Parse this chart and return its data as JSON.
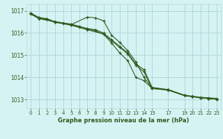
{
  "background_color": "#d5f3f3",
  "grid_color": "#b0d8d8",
  "line_color": "#2d5a1b",
  "title": "Graphe pression niveau de la mer (hPa)",
  "xlim": [
    -0.5,
    23.5
  ],
  "ylim": [
    1012.6,
    1017.3
  ],
  "yticks": [
    1013,
    1014,
    1015,
    1016,
    1017
  ],
  "xtick_positions": [
    0,
    1,
    2,
    3,
    4,
    5,
    6,
    7,
    8,
    9,
    10,
    11,
    12,
    13,
    14,
    15,
    17,
    19,
    20,
    21,
    22,
    23
  ],
  "xtick_labels": [
    "0",
    "1",
    "2",
    "3",
    "4",
    "5",
    "6",
    "7",
    "8",
    "9",
    "10",
    "11",
    "12",
    "13",
    "14",
    "15",
    "17",
    "19",
    "20",
    "21",
    "22",
    "23"
  ],
  "series": [
    {
      "x": [
        0,
        1,
        2,
        3,
        4,
        5,
        6,
        7,
        8,
        9,
        10,
        11,
        12,
        13,
        14,
        15,
        17,
        19,
        20,
        21,
        22,
        23
      ],
      "y": [
        1016.9,
        1016.7,
        1016.65,
        1016.5,
        1016.45,
        1016.4,
        1016.3,
        1016.2,
        1016.15,
        1016.0,
        1015.7,
        1015.4,
        1015.1,
        1014.6,
        1014.35,
        1013.55,
        1013.45,
        1013.2,
        1013.15,
        1013.1,
        1013.08,
        1013.05
      ]
    },
    {
      "x": [
        0,
        1,
        2,
        3,
        4,
        5,
        6,
        7,
        8,
        9,
        10,
        11,
        12,
        13,
        14,
        15,
        17,
        19,
        20,
        21,
        22,
        23
      ],
      "y": [
        1016.85,
        1016.65,
        1016.6,
        1016.48,
        1016.42,
        1016.37,
        1016.27,
        1016.17,
        1016.1,
        1015.95,
        1015.65,
        1015.35,
        1015.05,
        1014.55,
        1014.25,
        1013.5,
        1013.42,
        1013.18,
        1013.13,
        1013.08,
        1013.05,
        1013.02
      ]
    },
    {
      "x": [
        0,
        1,
        3,
        5,
        7,
        8,
        9,
        10,
        11,
        12,
        13,
        14,
        15,
        17,
        19,
        20,
        21,
        22,
        23
      ],
      "y": [
        1016.88,
        1016.68,
        1016.52,
        1016.38,
        1016.72,
        1016.68,
        1016.55,
        1015.9,
        1015.58,
        1015.2,
        1014.7,
        1014.0,
        1013.52,
        1013.44,
        1013.18,
        1013.13,
        1013.08,
        1013.05,
        1013.02
      ]
    },
    {
      "x": [
        0,
        1,
        3,
        5,
        7,
        9,
        10,
        11,
        12,
        13,
        14,
        15,
        17,
        19,
        20,
        21,
        22,
        23
      ],
      "y": [
        1016.88,
        1016.65,
        1016.5,
        1016.35,
        1016.15,
        1015.95,
        1015.55,
        1015.1,
        1014.75,
        1014.0,
        1013.85,
        1013.5,
        1013.44,
        1013.18,
        1013.13,
        1013.08,
        1013.05,
        1013.02
      ]
    }
  ]
}
